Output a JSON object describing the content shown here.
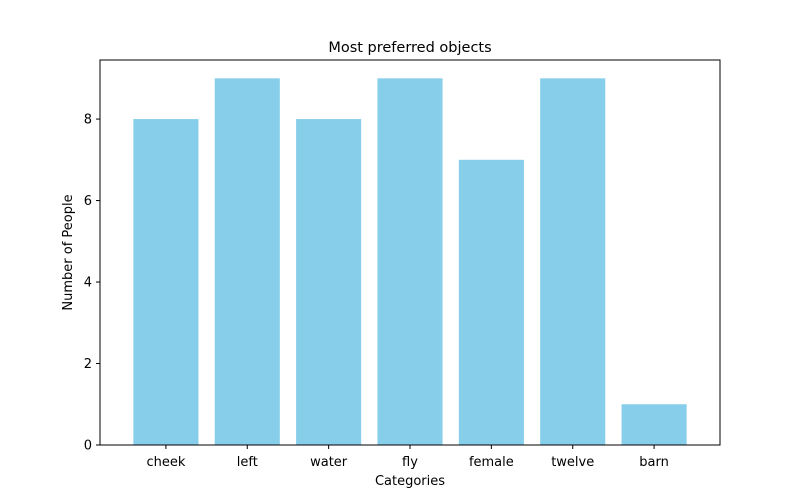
{
  "chart_data": {
    "type": "bar",
    "title": "Most preferred objects",
    "xlabel": "Categories",
    "ylabel": "Number of People",
    "categories": [
      "cheek",
      "left",
      "water",
      "fly",
      "female",
      "twelve",
      "barn"
    ],
    "values": [
      8,
      9,
      8,
      9,
      7,
      9,
      1
    ],
    "ylim": [
      0,
      9.45
    ],
    "yticks": [
      0,
      2,
      4,
      6,
      8
    ],
    "bar_color": "#87ceeb",
    "grid": false,
    "legend": "none"
  }
}
